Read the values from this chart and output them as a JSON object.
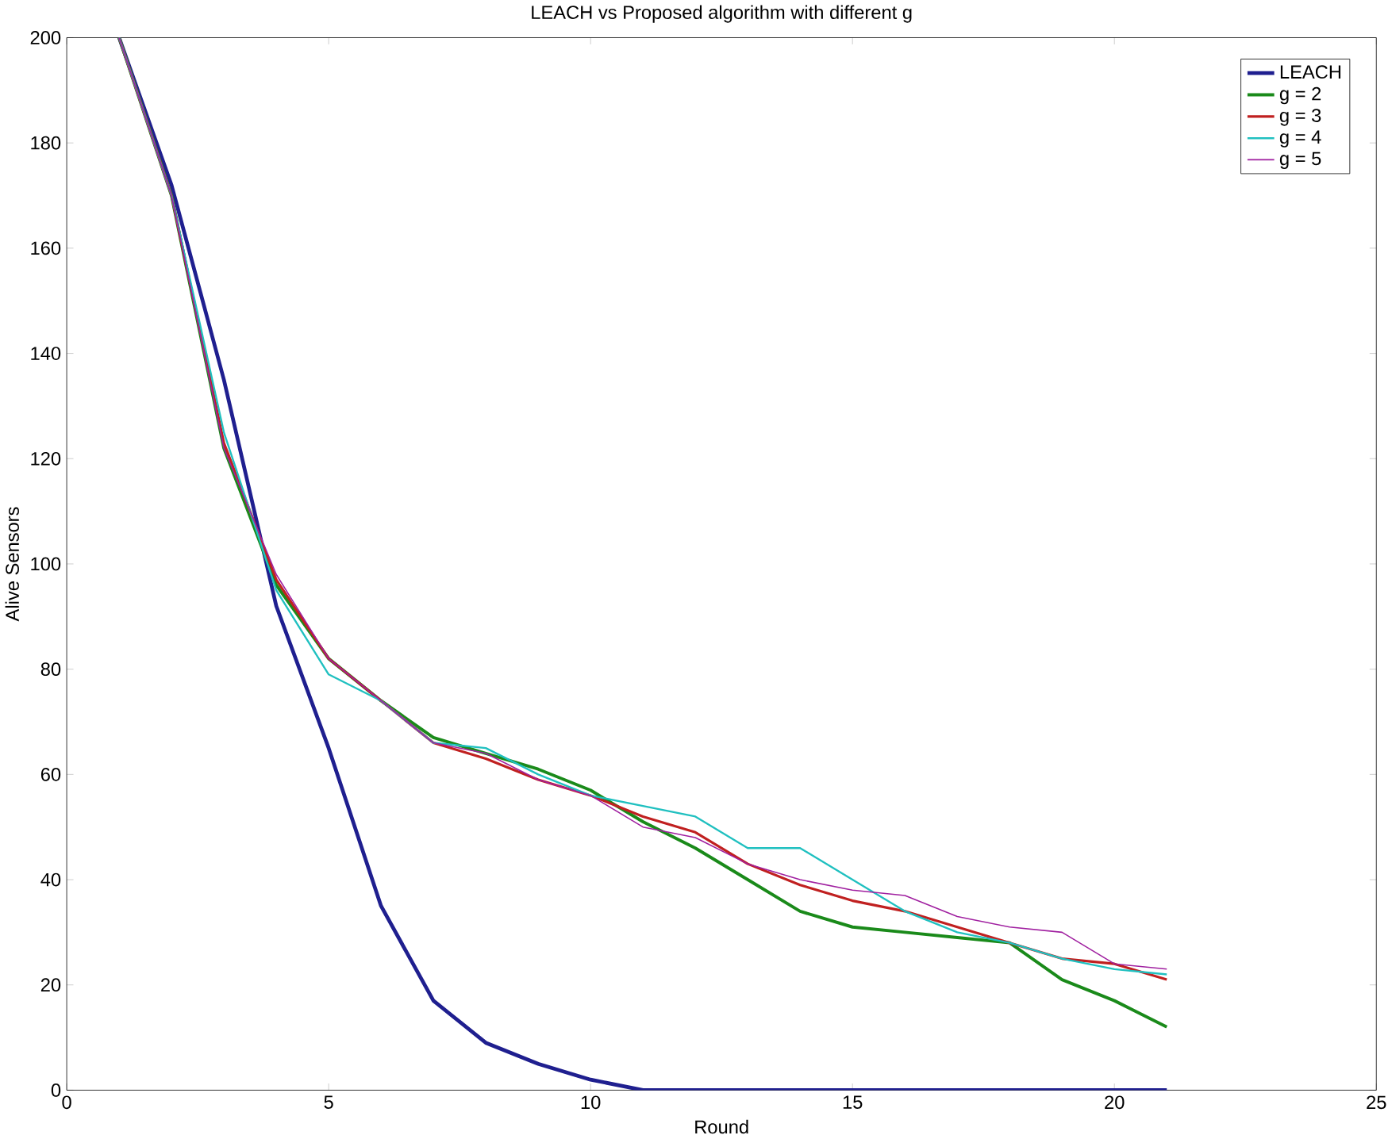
{
  "chart_data": {
    "type": "line",
    "title": "LEACH vs Proposed algorithm with different g",
    "xlabel": "Round",
    "ylabel": "Alive Sensors",
    "x": [
      1,
      2,
      3,
      4,
      5,
      6,
      7,
      8,
      9,
      10,
      11,
      12,
      13,
      14,
      15,
      16,
      17,
      18,
      19,
      20,
      21
    ],
    "series": [
      {
        "name": "LEACH",
        "color": "#1f1f8f",
        "values": [
          200,
          172,
          135,
          92,
          65,
          35,
          17,
          9,
          5,
          2,
          0,
          0,
          0,
          0,
          0,
          0,
          0,
          0,
          0,
          0,
          0
        ]
      },
      {
        "name": "g = 2",
        "color": "#1a8a1a",
        "values": [
          200,
          170,
          122,
          96,
          82,
          74,
          67,
          64,
          61,
          57,
          51,
          46,
          40,
          34,
          31,
          30,
          29,
          28,
          21,
          17,
          12
        ]
      },
      {
        "name": "g = 3",
        "color": "#c02020",
        "values": [
          200,
          170,
          123,
          97,
          82,
          74,
          66,
          63,
          59,
          56,
          52,
          49,
          43,
          39,
          36,
          34,
          31,
          28,
          25,
          24,
          21
        ]
      },
      {
        "name": "g = 4",
        "color": "#20c0c0",
        "values": [
          200,
          170,
          125,
          95,
          79,
          74,
          66,
          65,
          60,
          56,
          54,
          52,
          46,
          46,
          40,
          34,
          30,
          28,
          25,
          23,
          22
        ]
      },
      {
        "name": "g = 5",
        "color": "#a020a0",
        "values": [
          200,
          170,
          122,
          98,
          82,
          74,
          66,
          64,
          59,
          56,
          50,
          48,
          43,
          40,
          38,
          37,
          33,
          31,
          30,
          24,
          23
        ]
      }
    ],
    "xlim": [
      0,
      25
    ],
    "ylim": [
      0,
      200
    ],
    "xticks": [
      0,
      5,
      10,
      15,
      20,
      25
    ],
    "yticks": [
      0,
      20,
      40,
      60,
      80,
      100,
      120,
      140,
      160,
      180,
      200
    ],
    "grid": false,
    "legend": "top right",
    "marker": "none",
    "line_style": "solid"
  }
}
